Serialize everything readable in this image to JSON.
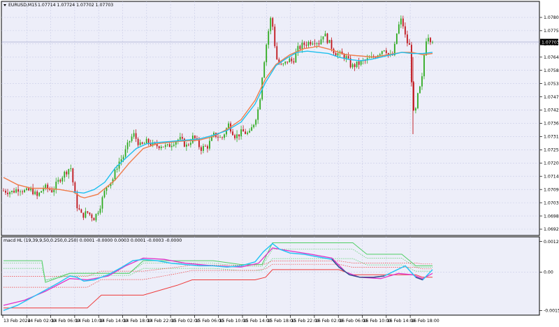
{
  "header": {
    "symbol": "EURUSD,M15",
    "ohlc": "1.07714 1.07724 1.07702 1.07703",
    "indicator": "macd HL (19,39,9,50,0.250,0.250) 0.0001 -0.0000 0.0003 0.0001 -0.0003 -0.0000"
  },
  "colors": {
    "bg": "#ffffff",
    "plot_bg": "#edeef9",
    "grid": "#c8cbe6",
    "bull": "#2eaa1f",
    "bear": "#c0141a",
    "ma_fast": "#1ec0ee",
    "ma_slow": "#f07c4a",
    "macd_cyan": "#28c4f4",
    "macd_magenta": "#e030c8",
    "macd_navy": "#3a4a8a",
    "band_green": "#4fcf64",
    "band_red": "#ef3a3a"
  },
  "chart_data": [
    {
      "type": "candlestick",
      "symbol": "EURUSD",
      "timeframe": "M15",
      "y_ticks": [
        "1.07805",
        "1.07750",
        "1.07695",
        "1.07640",
        "1.07585",
        "1.07530",
        "1.07475",
        "1.07420",
        "1.07365",
        "1.07310",
        "1.07255",
        "1.07200",
        "1.07145",
        "1.07090",
        "1.07035",
        "1.06980",
        "1.06925"
      ],
      "ylim": [
        1.06925,
        1.0786
      ],
      "current_price": "1.07703",
      "x_ticks": [
        "13 Feb 2024",
        "14 Feb 02:00",
        "14 Feb 06:00",
        "14 Feb 10:00",
        "14 Feb 14:00",
        "14 Feb 18:00",
        "14 Feb 22:00",
        "15 Feb 02:00",
        "15 Feb 06:00",
        "15 Feb 10:00",
        "15 Feb 14:00",
        "15 Feb 18:00",
        "15 Feb 22:00",
        "16 Feb 02:00",
        "16 Feb 06:00",
        "16 Feb 10:00",
        "16 Feb 14:00",
        "16 Feb 18:00"
      ],
      "close_path": [
        [
          0,
          1.07085
        ],
        [
          12,
          1.0708
        ],
        [
          22,
          1.07095
        ],
        [
          32,
          1.0708
        ],
        [
          40,
          1.0709
        ],
        [
          48,
          1.0706
        ],
        [
          58,
          1.071
        ],
        [
          70,
          1.07085
        ],
        [
          82,
          1.0714
        ],
        [
          96,
          1.07185
        ],
        [
          104,
          1.0703
        ],
        [
          112,
          1.0698
        ],
        [
          120,
          1.06995
        ],
        [
          130,
          1.0697
        ],
        [
          138,
          1.0702
        ],
        [
          148,
          1.0711
        ],
        [
          156,
          1.0713
        ],
        [
          164,
          1.072
        ],
        [
          172,
          1.0723
        ],
        [
          180,
          1.0729
        ],
        [
          186,
          1.0732
        ],
        [
          196,
          1.0727
        ],
        [
          206,
          1.0729
        ],
        [
          216,
          1.0727
        ],
        [
          226,
          1.07275
        ],
        [
          234,
          1.07265
        ],
        [
          244,
          1.0729
        ],
        [
          252,
          1.073
        ],
        [
          262,
          1.0727
        ],
        [
          272,
          1.0731
        ],
        [
          282,
          1.0726
        ],
        [
          292,
          1.0727
        ],
        [
          302,
          1.0732
        ],
        [
          312,
          1.073
        ],
        [
          322,
          1.0736
        ],
        [
          332,
          1.0731
        ],
        [
          342,
          1.0733
        ],
        [
          352,
          1.0732
        ],
        [
          360,
          1.0738
        ],
        [
          366,
          1.0744
        ],
        [
          370,
          1.0756
        ],
        [
          376,
          1.0769
        ],
        [
          382,
          1.078
        ],
        [
          386,
          1.0776
        ],
        [
          390,
          1.0764
        ],
        [
          396,
          1.076
        ],
        [
          402,
          1.0761
        ],
        [
          408,
          1.0763
        ],
        [
          414,
          1.0762
        ],
        [
          420,
          1.0767
        ],
        [
          428,
          1.0769
        ],
        [
          436,
          1.077
        ],
        [
          444,
          1.0771
        ],
        [
          452,
          1.077
        ],
        [
          458,
          1.0774
        ],
        [
          466,
          1.077
        ],
        [
          474,
          1.0766
        ],
        [
          482,
          1.0765
        ],
        [
          490,
          1.0764
        ],
        [
          498,
          1.076
        ],
        [
          506,
          1.0761
        ],
        [
          514,
          1.0762
        ],
        [
          522,
          1.0763
        ],
        [
          530,
          1.0764
        ],
        [
          538,
          1.0766
        ],
        [
          546,
          1.0768
        ],
        [
          552,
          1.0764
        ],
        [
          558,
          1.0765
        ],
        [
          564,
          1.0776
        ],
        [
          570,
          1.078
        ],
        [
          576,
          1.0771
        ],
        [
          582,
          1.0768
        ],
        [
          586,
          1.074
        ],
        [
          590,
          1.0742
        ],
        [
          594,
          1.075
        ],
        [
          598,
          1.0752
        ],
        [
          602,
          1.0765
        ],
        [
          606,
          1.0774
        ],
        [
          610,
          1.0772
        ],
        [
          614,
          1.07703
        ]
      ],
      "ma_fast_path": [
        [
          100,
          1.0708
        ],
        [
          115,
          1.07075
        ],
        [
          130,
          1.0709
        ],
        [
          145,
          1.0712
        ],
        [
          160,
          1.0718
        ],
        [
          175,
          1.0722
        ],
        [
          190,
          1.0726
        ],
        [
          205,
          1.0728
        ],
        [
          220,
          1.07285
        ],
        [
          240,
          1.0729
        ],
        [
          260,
          1.07295
        ],
        [
          280,
          1.073
        ],
        [
          300,
          1.07315
        ],
        [
          320,
          1.07335
        ],
        [
          340,
          1.0737
        ],
        [
          360,
          1.07445
        ],
        [
          375,
          1.07535
        ],
        [
          390,
          1.07605
        ],
        [
          405,
          1.07635
        ],
        [
          420,
          1.0766
        ],
        [
          435,
          1.07665
        ],
        [
          450,
          1.0766
        ],
        [
          465,
          1.07655
        ],
        [
          480,
          1.0764
        ],
        [
          495,
          1.0763
        ],
        [
          510,
          1.07625
        ],
        [
          525,
          1.0763
        ],
        [
          540,
          1.0764
        ],
        [
          555,
          1.0765
        ],
        [
          570,
          1.0766
        ],
        [
          585,
          1.07655
        ],
        [
          600,
          1.07655
        ],
        [
          614,
          1.0766
        ]
      ],
      "ma_slow_path": [
        [
          0,
          1.0714
        ],
        [
          20,
          1.0711
        ],
        [
          40,
          1.07095
        ],
        [
          60,
          1.07095
        ],
        [
          80,
          1.0709
        ],
        [
          100,
          1.0708
        ],
        [
          110,
          1.0706
        ],
        [
          116,
          1.07055
        ],
        [
          135,
          1.0707
        ],
        [
          160,
          1.0713
        ],
        [
          180,
          1.072
        ],
        [
          200,
          1.0726
        ],
        [
          220,
          1.0728
        ],
        [
          250,
          1.0729
        ],
        [
          280,
          1.07295
        ],
        [
          300,
          1.0731
        ],
        [
          320,
          1.0734
        ],
        [
          340,
          1.0738
        ],
        [
          360,
          1.0746
        ],
        [
          375,
          1.0755
        ],
        [
          390,
          1.0761
        ],
        [
          410,
          1.0765
        ],
        [
          430,
          1.07675
        ],
        [
          450,
          1.07685
        ],
        [
          470,
          1.0767
        ],
        [
          490,
          1.0765
        ],
        [
          510,
          1.07645
        ],
        [
          530,
          1.0764
        ],
        [
          550,
          1.0765
        ],
        [
          570,
          1.0766
        ],
        [
          585,
          1.0766
        ],
        [
          600,
          1.0765
        ],
        [
          614,
          1.07655
        ]
      ]
    },
    {
      "type": "line",
      "name": "macd HL",
      "y_ticks": [
        "0.0012",
        "0.00",
        "-0.0015"
      ],
      "ylim": [
        -0.0016,
        0.0013
      ],
      "series": [
        {
          "name": "macd",
          "values": [
            [
              0,
              -0.0015
            ],
            [
              20,
              -0.0013
            ],
            [
              40,
              -0.001
            ],
            [
              60,
              -0.0007
            ],
            [
              80,
              -0.0004
            ],
            [
              95,
              -0.00015
            ],
            [
              105,
              -0.0002
            ],
            [
              115,
              -0.00035
            ],
            [
              130,
              -0.0003
            ],
            [
              150,
              -0.0001
            ],
            [
              170,
              0.0002
            ],
            [
              185,
              0.00045
            ],
            [
              200,
              0.0005
            ],
            [
              220,
              0.00045
            ],
            [
              240,
              0.00035
            ],
            [
              260,
              0.0003
            ],
            [
              280,
              0.00025
            ],
            [
              300,
              0.00025
            ],
            [
              320,
              0.0002
            ],
            [
              340,
              0.00025
            ],
            [
              360,
              0.0004
            ],
            [
              372,
              0.0008
            ],
            [
              385,
              0.00112
            ],
            [
              395,
              0.0009
            ],
            [
              410,
              0.00075
            ],
            [
              430,
              0.0007
            ],
            [
              450,
              0.0006
            ],
            [
              470,
              0.0005
            ],
            [
              480,
              0.0002
            ],
            [
              495,
              -0.0001
            ],
            [
              510,
              -0.0002
            ],
            [
              530,
              -0.0002
            ],
            [
              545,
              -0.00015
            ],
            [
              560,
              5e-05
            ],
            [
              575,
              0.00025
            ],
            [
              590,
              -0.0002
            ],
            [
              600,
              -0.0003
            ],
            [
              614,
              0.0001
            ]
          ]
        },
        {
          "name": "signal",
          "values": [
            [
              0,
              -0.0013
            ],
            [
              30,
              -0.0011
            ],
            [
              60,
              -0.00075
            ],
            [
              95,
              -0.00025
            ],
            [
              120,
              -0.0003
            ],
            [
              150,
              -0.00015
            ],
            [
              175,
              0.00025
            ],
            [
              200,
              0.00055
            ],
            [
              230,
              0.0005
            ],
            [
              260,
              0.00035
            ],
            [
              300,
              0.00025
            ],
            [
              340,
              0.0002
            ],
            [
              365,
              0.00035
            ],
            [
              385,
              0.00095
            ],
            [
              405,
              0.00085
            ],
            [
              440,
              0.0007
            ],
            [
              470,
              0.00055
            ],
            [
              490,
              0.0
            ],
            [
              510,
              -0.0002
            ],
            [
              540,
              -0.00025
            ],
            [
              565,
              -5e-05
            ],
            [
              585,
              -0.0001
            ],
            [
              600,
              -0.00025
            ],
            [
              614,
              -5e-05
            ]
          ]
        },
        {
          "name": "upper_band",
          "values": [
            [
              0,
              0.00045
            ],
            [
              55,
              0.00045
            ],
            [
              60,
              -0.0004
            ],
            [
              95,
              -5e-05
            ],
            [
              180,
              -5e-05
            ],
            [
              200,
              0.00045
            ],
            [
              300,
              0.00045
            ],
            [
              340,
              0.0003
            ],
            [
              370,
              0.0003
            ],
            [
              385,
              0.00115
            ],
            [
              500,
              0.00115
            ],
            [
              520,
              0.0007
            ],
            [
              570,
              0.0007
            ],
            [
              590,
              0.00025
            ],
            [
              614,
              0.00025
            ]
          ]
        },
        {
          "name": "lower_band",
          "values": [
            [
              0,
              -0.0014
            ],
            [
              120,
              -0.0014
            ],
            [
              140,
              -0.0009
            ],
            [
              200,
              -0.0009
            ],
            [
              250,
              -0.0005
            ],
            [
              270,
              -0.0003
            ],
            [
              300,
              -0.0003
            ],
            [
              360,
              -0.0003
            ],
            [
              375,
              -0.0002
            ],
            [
              385,
              0.0001
            ],
            [
              480,
              0.0001
            ],
            [
              500,
              -0.0001
            ],
            [
              540,
              -0.0001
            ],
            [
              590,
              -0.0001
            ],
            [
              600,
              -0.0002
            ],
            [
              614,
              -0.0002
            ]
          ]
        }
      ]
    }
  ]
}
